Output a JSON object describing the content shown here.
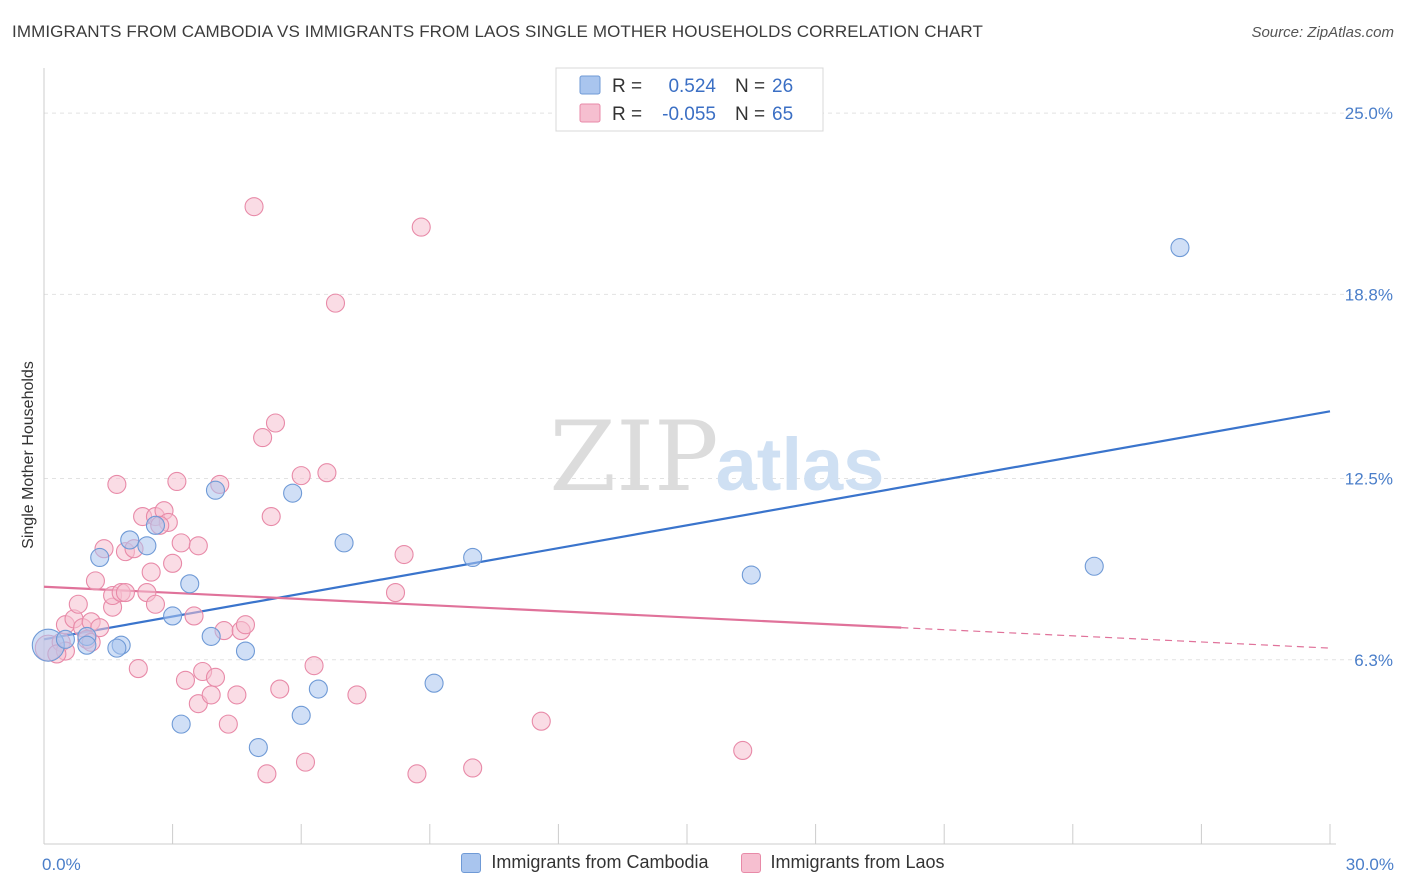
{
  "title": "IMMIGRANTS FROM CAMBODIA VS IMMIGRANTS FROM LAOS SINGLE MOTHER HOUSEHOLDS CORRELATION CHART",
  "source": "Source: ZipAtlas.com",
  "watermark": {
    "zip": "ZIP",
    "atlas": "atlas"
  },
  "legend": {
    "r_label": "R =",
    "n_label": "N =",
    "rows": [
      {
        "r": "0.524",
        "n": "26",
        "color": "#a9c5ee",
        "stroke": "#6f9ad6"
      },
      {
        "r": "-0.055",
        "n": "65",
        "color": "#f6bfd0",
        "stroke": "#e88aa8"
      }
    ]
  },
  "chart_data": {
    "type": "scatter",
    "ylabel": "Single Mother Households",
    "xlim": [
      0,
      30
    ],
    "ylim": [
      0,
      26.2
    ],
    "x_tick_labels": [
      {
        "value": 0,
        "label": "0.0%"
      },
      {
        "value": 30,
        "label": "30.0%"
      }
    ],
    "y_tick_labels": [
      {
        "value": 6.3,
        "label": "6.3%"
      },
      {
        "value": 12.5,
        "label": "12.5%"
      },
      {
        "value": 18.8,
        "label": "18.8%"
      },
      {
        "value": 25.0,
        "label": "25.0%"
      }
    ],
    "grid": true,
    "series": [
      {
        "name": "Immigrants from Cambodia",
        "color": "#a9c5ee",
        "stroke": "#6f9ad6",
        "line_color": "#3a74cc",
        "trend": {
          "x0": 0,
          "y0": 7.0,
          "x1": 30,
          "y1": 14.8,
          "solid_to": 30
        },
        "points": [
          [
            0.1,
            6.8,
            16
          ],
          [
            0.5,
            7.0,
            9
          ],
          [
            1.0,
            7.1,
            9
          ],
          [
            1.0,
            6.8,
            9
          ],
          [
            1.8,
            6.8,
            9
          ],
          [
            1.3,
            9.8,
            9
          ],
          [
            2.0,
            10.4,
            9
          ],
          [
            2.4,
            10.2,
            9
          ],
          [
            2.6,
            10.9,
            9
          ],
          [
            3.0,
            7.8,
            9
          ],
          [
            3.2,
            4.1,
            9
          ],
          [
            3.4,
            8.9,
            9
          ],
          [
            3.9,
            7.1,
            9
          ],
          [
            4.0,
            12.1,
            9
          ],
          [
            4.7,
            6.6,
            9
          ],
          [
            5.0,
            3.3,
            9
          ],
          [
            5.8,
            12.0,
            9
          ],
          [
            6.0,
            4.4,
            9
          ],
          [
            6.4,
            5.3,
            9
          ],
          [
            7.0,
            10.3,
            9
          ],
          [
            9.1,
            5.5,
            9
          ],
          [
            10.0,
            9.8,
            9
          ],
          [
            16.5,
            9.2,
            9
          ],
          [
            24.5,
            9.5,
            9
          ],
          [
            26.5,
            20.4,
            9
          ],
          [
            1.7,
            6.7,
            9
          ]
        ]
      },
      {
        "name": "Immigrants from Laos",
        "color": "#f6bfd0",
        "stroke": "#e88aa8",
        "line_color": "#e0729a",
        "trend": {
          "x0": 0,
          "y0": 8.8,
          "x1": 30,
          "y1": 6.7,
          "solid_to": 20.0
        },
        "points": [
          [
            0.1,
            6.7,
            13
          ],
          [
            0.4,
            6.9,
            9
          ],
          [
            0.5,
            6.6,
            9
          ],
          [
            0.5,
            7.5,
            9
          ],
          [
            0.7,
            7.7,
            9
          ],
          [
            0.8,
            8.2,
            9
          ],
          [
            0.9,
            7.4,
            9
          ],
          [
            1.0,
            7.0,
            9
          ],
          [
            1.1,
            6.9,
            9
          ],
          [
            1.1,
            7.6,
            9
          ],
          [
            1.2,
            9.0,
            9
          ],
          [
            1.4,
            10.1,
            9
          ],
          [
            1.6,
            8.1,
            9
          ],
          [
            1.6,
            8.5,
            9
          ],
          [
            1.7,
            12.3,
            9
          ],
          [
            1.8,
            8.6,
            9
          ],
          [
            1.9,
            8.6,
            9
          ],
          [
            1.9,
            10.0,
            9
          ],
          [
            2.1,
            10.1,
            9
          ],
          [
            2.2,
            6.0,
            9
          ],
          [
            2.3,
            11.2,
            9
          ],
          [
            2.4,
            8.6,
            9
          ],
          [
            2.5,
            9.3,
            9
          ],
          [
            2.6,
            8.2,
            9
          ],
          [
            2.6,
            11.2,
            9
          ],
          [
            2.8,
            11.4,
            9
          ],
          [
            2.9,
            11.0,
            9
          ],
          [
            3.0,
            9.6,
            9
          ],
          [
            3.1,
            12.4,
            9
          ],
          [
            3.2,
            10.3,
            9
          ],
          [
            3.3,
            5.6,
            9
          ],
          [
            3.5,
            7.8,
            9
          ],
          [
            3.6,
            4.8,
            9
          ],
          [
            3.6,
            10.2,
            9
          ],
          [
            3.7,
            5.9,
            9
          ],
          [
            3.9,
            5.1,
            9
          ],
          [
            4.0,
            5.7,
            9
          ],
          [
            4.1,
            12.3,
            9
          ],
          [
            4.2,
            7.3,
            9
          ],
          [
            4.3,
            4.1,
            9
          ],
          [
            4.5,
            5.1,
            9
          ],
          [
            4.6,
            7.3,
            9
          ],
          [
            4.7,
            7.5,
            9
          ],
          [
            5.1,
            13.9,
            9
          ],
          [
            5.2,
            2.4,
            9
          ],
          [
            5.3,
            11.2,
            9
          ],
          [
            5.4,
            14.4,
            9
          ],
          [
            5.5,
            5.3,
            9
          ],
          [
            6.0,
            12.6,
            9
          ],
          [
            6.1,
            2.8,
            9
          ],
          [
            6.3,
            6.1,
            9
          ],
          [
            6.6,
            12.7,
            9
          ],
          [
            6.8,
            18.5,
            9
          ],
          [
            7.3,
            5.1,
            9
          ],
          [
            8.2,
            8.6,
            9
          ],
          [
            8.4,
            9.9,
            9
          ],
          [
            8.7,
            2.4,
            9
          ],
          [
            8.8,
            21.1,
            9
          ],
          [
            10.0,
            2.6,
            9
          ],
          [
            11.6,
            4.2,
            9
          ],
          [
            16.3,
            3.2,
            9
          ],
          [
            4.9,
            21.8,
            9
          ],
          [
            1.3,
            7.4,
            9
          ],
          [
            0.3,
            6.5,
            9
          ],
          [
            2.7,
            10.9,
            9
          ]
        ]
      }
    ]
  }
}
